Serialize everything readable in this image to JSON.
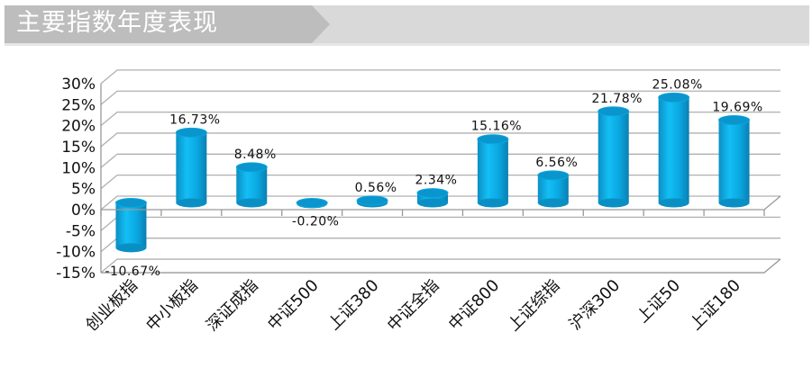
{
  "header": {
    "title": "主要指数年度表现"
  },
  "chart_data": {
    "type": "bar",
    "title": "主要指数年度表现",
    "categories": [
      "创业板指",
      "中小板指",
      "深证成指",
      "中证500",
      "上证380",
      "中证全指",
      "中证800",
      "上证综指",
      "沪深300",
      "上证50",
      "上证180"
    ],
    "values": [
      -10.67,
      16.73,
      8.48,
      -0.2,
      0.56,
      2.34,
      15.16,
      6.56,
      21.78,
      25.08,
      19.69
    ],
    "value_labels": [
      "-10.67%",
      "16.73%",
      "8.48%",
      "-0.20%",
      "0.56%",
      "2.34%",
      "15.16%",
      "6.56%",
      "21.78%",
      "25.08%",
      "19.69%"
    ],
    "y_ticks": [
      30,
      25,
      20,
      15,
      10,
      5,
      0,
      -5,
      -10,
      -15
    ],
    "y_tick_labels": [
      "30%",
      "25%",
      "20%",
      "15%",
      "10%",
      "5%",
      "0%",
      "-5%",
      "-10%",
      "-15%"
    ],
    "ylim": [
      -15,
      30
    ],
    "xlabel": "",
    "ylabel": "",
    "grid": true,
    "bar_color": "#0aa6e0"
  }
}
